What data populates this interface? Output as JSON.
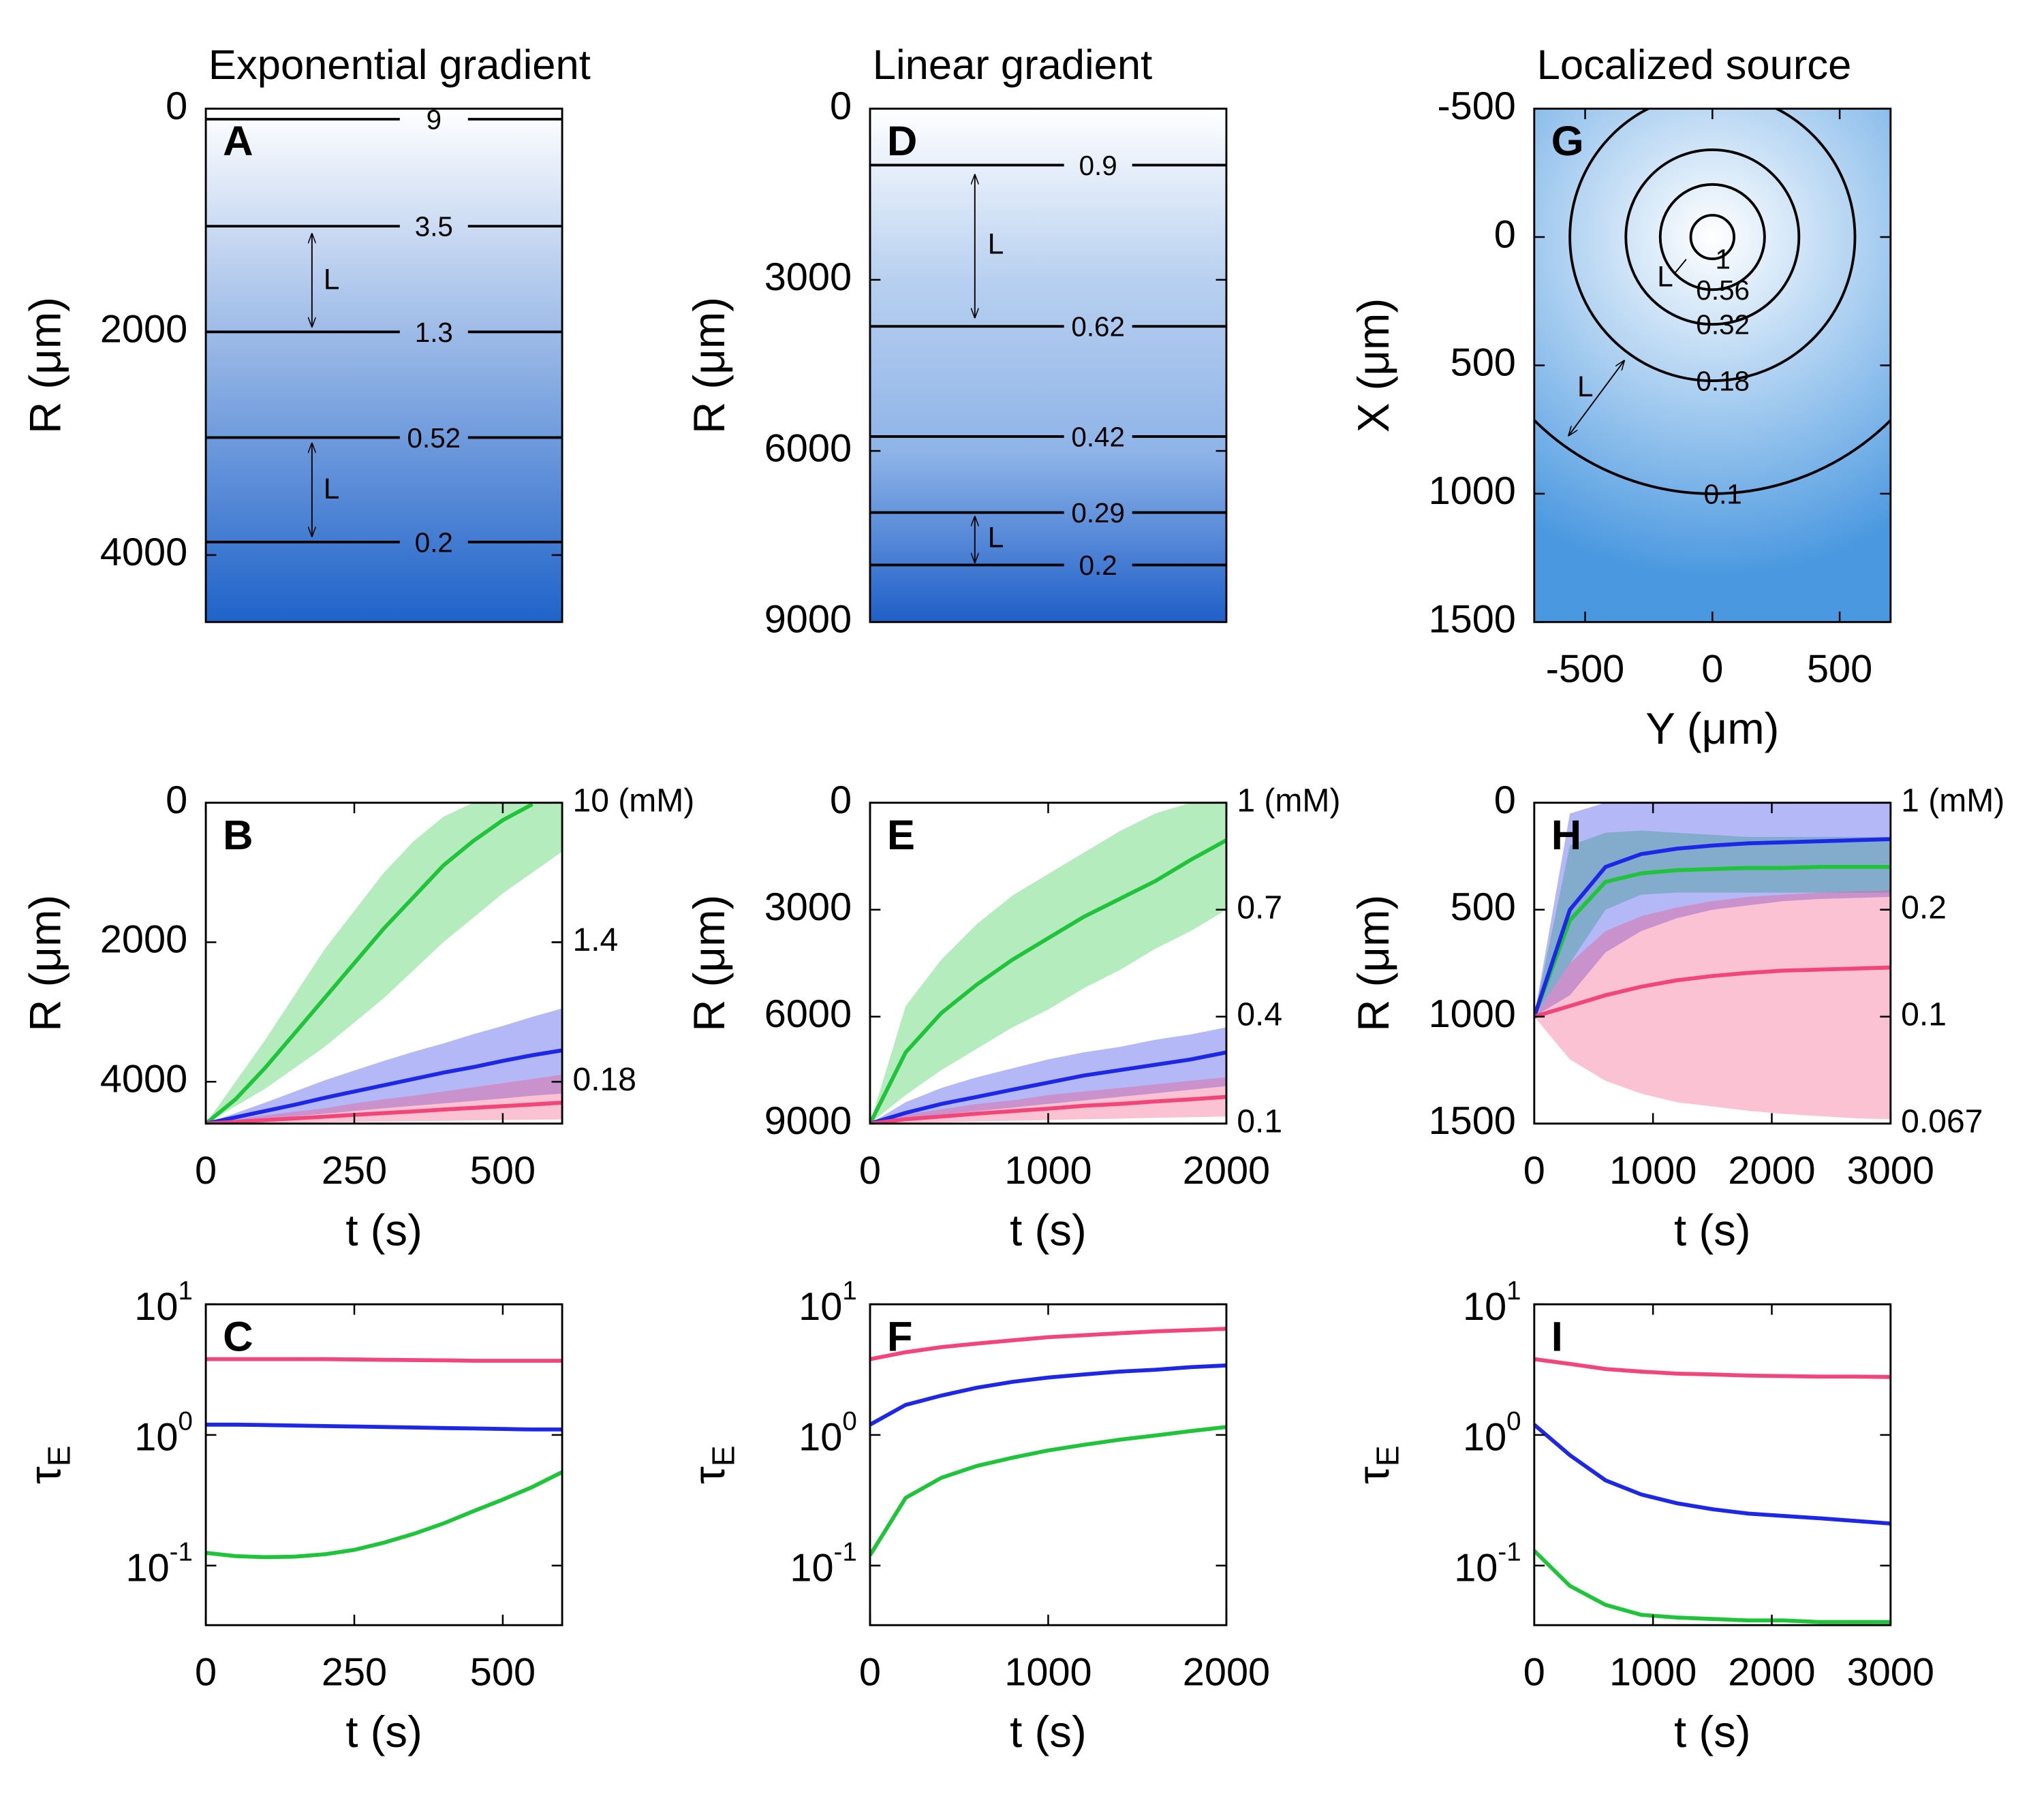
{
  "chart_data": [
    {
      "type": "contour",
      "panel": "A",
      "title": "Exponential gradient",
      "ylabel": "R (μm)",
      "ylim": [
        0,
        4600
      ],
      "yticks": [
        0,
        2000,
        4000
      ],
      "y_reversed": true,
      "levels": [
        9,
        3.5,
        1.3,
        0.52,
        0.2
      ],
      "level_positions": [
        94,
        1053,
        2000,
        2947,
        3883
      ],
      "annotations": [
        "L",
        "L"
      ],
      "colors": [
        "#ffffff",
        "#1f63c9"
      ]
    },
    {
      "type": "contour",
      "panel": "D",
      "title": "Linear gradient",
      "ylabel": "R (μm)",
      "ylim": [
        0,
        9000
      ],
      "yticks": [
        0,
        3000,
        6000,
        9000
      ],
      "y_reversed": true,
      "levels": [
        0.9,
        0.62,
        0.42,
        0.29,
        0.2
      ],
      "level_positions": [
        989,
        3816,
        5747,
        7080,
        8000
      ],
      "annotations": [
        "L",
        "L"
      ],
      "colors": [
        "#ffffff",
        "#b8d0f0",
        "#8fb4e8",
        "#1f5fc8"
      ]
    },
    {
      "type": "radial_contour",
      "panel": "G",
      "title": "Localized source",
      "xlabel": "Y (μm)",
      "ylabel": "X (μm)",
      "xlim": [
        -700,
        700
      ],
      "xticks": [
        -500,
        0,
        500
      ],
      "ylim": [
        -500,
        1500
      ],
      "yticks": [
        -500,
        0,
        500,
        1000,
        1500
      ],
      "y_reversed": true,
      "levels": [
        1,
        0.56,
        0.32,
        0.18,
        0.1
      ],
      "level_radii": [
        85,
        205,
        340,
        560,
        1000
      ],
      "annotations": [
        "L",
        "L"
      ],
      "colors": [
        "#ffffff",
        "#4a98e0"
      ]
    },
    {
      "type": "band_line",
      "panel": "B",
      "xlabel": "t (s)",
      "ylabel": "R (μm)",
      "xlim": [
        0,
        600
      ],
      "xticks": [
        0,
        250,
        500
      ],
      "ylim": [
        0,
        4600
      ],
      "yticks": [
        0,
        2000,
        4000
      ],
      "y_reversed": true,
      "conc_labels": [
        {
          "R": 0,
          "text": "10 (mM)"
        },
        {
          "R": 2000,
          "text": "1.4"
        },
        {
          "R": 4000,
          "text": "0.18"
        }
      ],
      "x": [
        0,
        50,
        100,
        150,
        200,
        250,
        300,
        350,
        400,
        450,
        500,
        550,
        600
      ],
      "series": [
        {
          "color": "#1fc43a",
          "values": [
            4600,
            4250,
            3800,
            3300,
            2800,
            2300,
            1800,
            1350,
            900,
            550,
            250,
            20,
            null
          ],
          "band_low": [
            4600,
            4000,
            3400,
            2750,
            2100,
            1550,
            1000,
            550,
            200,
            0,
            0,
            0,
            0
          ],
          "band_high": [
            4600,
            4350,
            4100,
            3800,
            3500,
            3150,
            2800,
            2400,
            2000,
            1650,
            1300,
            1000,
            700
          ]
        },
        {
          "color": "#1d27e6",
          "values": [
            4600,
            4510,
            4420,
            4330,
            4230,
            4140,
            4050,
            3960,
            3870,
            3790,
            3700,
            3620,
            3550
          ],
          "band_low": [
            4600,
            4450,
            4300,
            4140,
            3980,
            3840,
            3700,
            3570,
            3450,
            3320,
            3200,
            3070,
            2950
          ],
          "band_high": [
            4600,
            4565,
            4530,
            4495,
            4460,
            4420,
            4380,
            4345,
            4310,
            4275,
            4240,
            4200,
            4170
          ]
        },
        {
          "color": "#f2457a",
          "values": [
            4600,
            4575,
            4550,
            4525,
            4500,
            4475,
            4450,
            4425,
            4400,
            4375,
            4350,
            4325,
            4300
          ],
          "band_low": [
            4600,
            4540,
            4480,
            4430,
            4380,
            4310,
            4250,
            4200,
            4140,
            4080,
            4020,
            3960,
            3900
          ],
          "band_high": [
            4600,
            4595,
            4590,
            4585,
            4580,
            4575,
            4570,
            4565,
            4560,
            4555,
            4550,
            4545,
            4540
          ]
        }
      ]
    },
    {
      "type": "band_line",
      "panel": "E",
      "xlabel": "t (s)",
      "ylabel": "R (μm)",
      "xlim": [
        0,
        2000
      ],
      "xticks": [
        0,
        1000,
        2000
      ],
      "ylim": [
        0,
        9000
      ],
      "yticks": [
        0,
        3000,
        6000,
        9000
      ],
      "y_reversed": true,
      "conc_labels": [
        {
          "R": 0,
          "text": "1 (mM)"
        },
        {
          "R": 3000,
          "text": "0.7"
        },
        {
          "R": 6000,
          "text": "0.4"
        },
        {
          "R": 9000,
          "text": "0.1"
        }
      ],
      "x": [
        0,
        200,
        400,
        600,
        800,
        1000,
        1200,
        1400,
        1600,
        1800,
        2000
      ],
      "series": [
        {
          "color": "#1fc43a",
          "values": [
            9000,
            7000,
            5900,
            5100,
            4400,
            3800,
            3200,
            2700,
            2200,
            1600,
            1050
          ],
          "band_low": [
            9000,
            5700,
            4400,
            3400,
            2600,
            2000,
            1400,
            800,
            300,
            0,
            0
          ],
          "band_high": [
            9000,
            8200,
            7500,
            6900,
            6300,
            5800,
            5200,
            4700,
            4100,
            3600,
            3000
          ]
        },
        {
          "color": "#1d27e6",
          "values": [
            9000,
            8700,
            8450,
            8250,
            8050,
            7850,
            7650,
            7500,
            7350,
            7200,
            7000
          ],
          "band_low": [
            9000,
            8400,
            8000,
            7700,
            7450,
            7200,
            7000,
            6850,
            6650,
            6500,
            6300
          ],
          "band_high": [
            9000,
            8850,
            8750,
            8650,
            8550,
            8450,
            8350,
            8250,
            8150,
            8050,
            7950
          ]
        },
        {
          "color": "#f2457a",
          "values": [
            9000,
            8880,
            8800,
            8720,
            8650,
            8580,
            8500,
            8450,
            8380,
            8320,
            8250
          ],
          "band_low": [
            9000,
            8750,
            8600,
            8450,
            8350,
            8200,
            8100,
            8000,
            7900,
            7800,
            7700
          ],
          "band_high": [
            9000,
            8980,
            8960,
            8940,
            8920,
            8900,
            8880,
            8860,
            8840,
            8820,
            8800
          ]
        }
      ]
    },
    {
      "type": "band_line",
      "panel": "H",
      "xlabel": "t (s)",
      "ylabel": "R (μm)",
      "xlim": [
        0,
        3000
      ],
      "xticks": [
        0,
        1000,
        2000,
        3000
      ],
      "ylim": [
        0,
        1500
      ],
      "yticks": [
        0,
        500,
        1000,
        1500
      ],
      "y_reversed": true,
      "conc_labels": [
        {
          "R": 0,
          "text": "1 (mM)"
        },
        {
          "R": 500,
          "text": "0.2"
        },
        {
          "R": 1000,
          "text": "0.1"
        },
        {
          "R": 1500,
          "text": "0.067"
        }
      ],
      "x": [
        0,
        300,
        600,
        900,
        1200,
        1500,
        1800,
        2100,
        2400,
        2700,
        3000
      ],
      "series": [
        {
          "color": "#1fc43a",
          "values": [
            1000,
            550,
            370,
            330,
            315,
            310,
            305,
            305,
            300,
            300,
            300
          ],
          "band_low": [
            1000,
            200,
            140,
            130,
            140,
            150,
            160,
            160,
            160,
            160,
            160
          ],
          "band_high": [
            1000,
            750,
            500,
            430,
            420,
            420,
            420,
            420,
            420,
            420,
            420
          ]
        },
        {
          "color": "#1d27e6",
          "values": [
            1000,
            500,
            300,
            240,
            215,
            200,
            190,
            185,
            180,
            175,
            170
          ],
          "band_low": [
            1000,
            50,
            0,
            0,
            0,
            0,
            0,
            0,
            0,
            0,
            0
          ],
          "band_high": [
            1000,
            900,
            700,
            600,
            540,
            500,
            480,
            460,
            450,
            445,
            440
          ]
        },
        {
          "color": "#f2457a",
          "values": [
            1000,
            950,
            900,
            860,
            830,
            810,
            795,
            785,
            780,
            775,
            770
          ],
          "band_low": [
            1000,
            750,
            600,
            530,
            490,
            460,
            440,
            430,
            420,
            415,
            410
          ],
          "band_high": [
            1000,
            1200,
            1300,
            1360,
            1400,
            1420,
            1440,
            1455,
            1465,
            1475,
            1480
          ]
        }
      ]
    },
    {
      "type": "line",
      "panel": "C",
      "xlabel": "t (s)",
      "ylabel": "τ",
      "ylabel_sub": "E",
      "xlim": [
        0,
        600
      ],
      "xticks": [
        0,
        250,
        500
      ],
      "ylog": true,
      "ylim": [
        0.035,
        10
      ],
      "yticks": [
        {
          "value": 10,
          "label": "10",
          "exponent": "1"
        },
        {
          "value": 1,
          "label": "10",
          "exponent": "0"
        },
        {
          "value": 0.1,
          "label": "10",
          "exponent": "-1"
        }
      ],
      "x": [
        0,
        50,
        100,
        150,
        200,
        250,
        300,
        350,
        400,
        450,
        500,
        550,
        600
      ],
      "series": [
        {
          "color": "#f2457a",
          "values": [
            3.8,
            3.8,
            3.8,
            3.8,
            3.8,
            3.78,
            3.76,
            3.74,
            3.72,
            3.7,
            3.7,
            3.7,
            3.7
          ]
        },
        {
          "color": "#1d27e6",
          "values": [
            1.2,
            1.2,
            1.19,
            1.18,
            1.17,
            1.16,
            1.15,
            1.14,
            1.13,
            1.12,
            1.11,
            1.1,
            1.1
          ]
        },
        {
          "color": "#1fc43a",
          "values": [
            0.125,
            0.118,
            0.116,
            0.117,
            0.122,
            0.132,
            0.15,
            0.175,
            0.21,
            0.26,
            0.32,
            0.4,
            0.52
          ]
        }
      ]
    },
    {
      "type": "line",
      "panel": "F",
      "xlabel": "t (s)",
      "ylabel": "τ",
      "ylabel_sub": "E",
      "xlim": [
        0,
        2000
      ],
      "xticks": [
        0,
        1000,
        2000
      ],
      "ylog": true,
      "ylim": [
        0.035,
        10
      ],
      "yticks": [
        {
          "value": 10,
          "label": "10",
          "exponent": "1"
        },
        {
          "value": 1,
          "label": "10",
          "exponent": "0"
        },
        {
          "value": 0.1,
          "label": "10",
          "exponent": "-1"
        }
      ],
      "x": [
        0,
        200,
        400,
        600,
        800,
        1000,
        1200,
        1400,
        1600,
        1800,
        2000
      ],
      "series": [
        {
          "color": "#f2457a",
          "values": [
            3.8,
            4.3,
            4.7,
            5.0,
            5.3,
            5.6,
            5.8,
            6.0,
            6.2,
            6.35,
            6.5
          ]
        },
        {
          "color": "#1d27e6",
          "values": [
            1.2,
            1.7,
            2.0,
            2.3,
            2.55,
            2.75,
            2.9,
            3.05,
            3.15,
            3.3,
            3.4
          ]
        },
        {
          "color": "#1fc43a",
          "values": [
            0.12,
            0.33,
            0.47,
            0.58,
            0.67,
            0.76,
            0.84,
            0.92,
            0.99,
            1.07,
            1.15
          ]
        }
      ]
    },
    {
      "type": "line",
      "panel": "I",
      "xlabel": "t (s)",
      "ylabel": "τ",
      "ylabel_sub": "E",
      "xlim": [
        0,
        3000
      ],
      "xticks": [
        0,
        1000,
        2000,
        3000
      ],
      "ylog": true,
      "ylim": [
        0.035,
        10
      ],
      "yticks": [
        {
          "value": 10,
          "label": "10",
          "exponent": "1"
        },
        {
          "value": 1,
          "label": "10",
          "exponent": "0"
        },
        {
          "value": 0.1,
          "label": "10",
          "exponent": "-1"
        }
      ],
      "x": [
        0,
        300,
        600,
        900,
        1200,
        1500,
        1800,
        2100,
        2400,
        2700,
        3000
      ],
      "series": [
        {
          "color": "#f2457a",
          "values": [
            3.8,
            3.5,
            3.2,
            3.05,
            2.95,
            2.9,
            2.85,
            2.82,
            2.8,
            2.8,
            2.78
          ]
        },
        {
          "color": "#1d27e6",
          "values": [
            1.2,
            0.7,
            0.45,
            0.35,
            0.3,
            0.27,
            0.25,
            0.24,
            0.23,
            0.22,
            0.21
          ]
        },
        {
          "color": "#1fc43a",
          "values": [
            0.13,
            0.07,
            0.05,
            0.042,
            0.04,
            0.039,
            0.038,
            0.038,
            0.037,
            0.037,
            0.037
          ]
        }
      ]
    }
  ]
}
